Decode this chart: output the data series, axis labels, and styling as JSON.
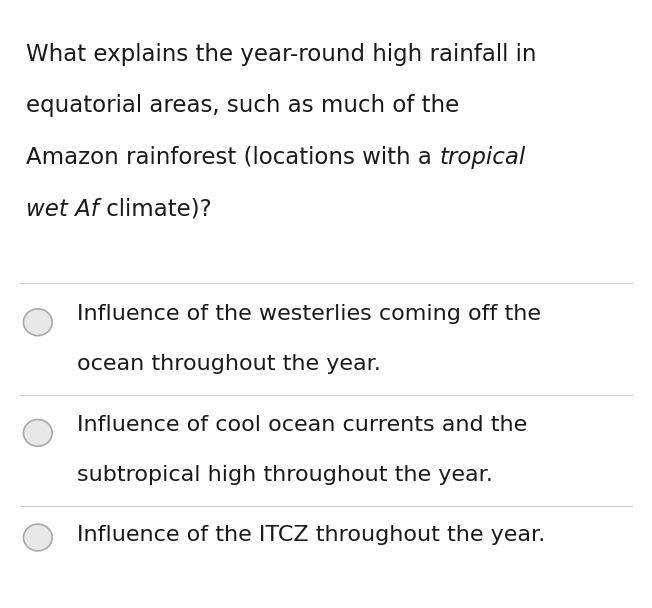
{
  "background_color": "#ffffff",
  "options": [
    {
      "line1": "Influence of the westerlies coming off the",
      "line2": "ocean throughout the year."
    },
    {
      "line1": "Influence of cool ocean currents and the",
      "line2": "subtropical high throughout the year."
    },
    {
      "line1": "Influence of the ITCZ throughout the year.",
      "line2": null
    }
  ],
  "divider_color": "#cccccc",
  "text_color": "#1a1a1a",
  "radio_border_color": "#aaaaaa",
  "radio_fill_color": "#e8e8e8",
  "font_size_question": 16.5,
  "font_size_option": 16.0
}
